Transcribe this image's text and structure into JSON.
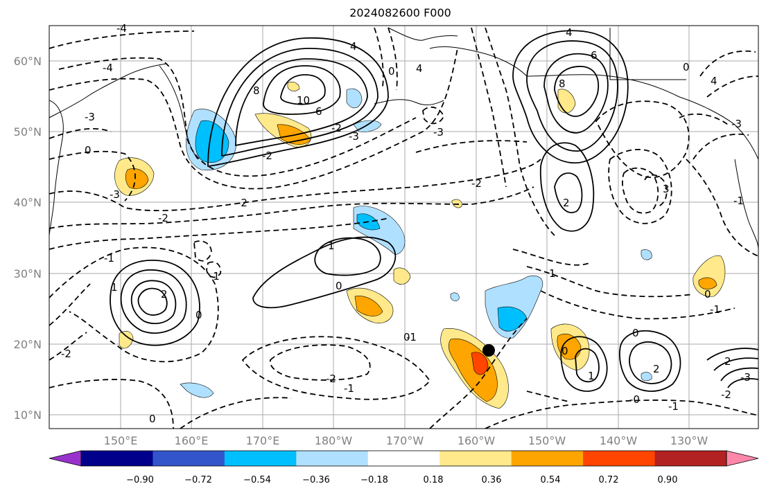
{
  "title": "2024082600 F000",
  "lat_labels": [
    "60°N",
    "50°N",
    "40°N",
    "30°N",
    "20°N",
    "10°N"
  ],
  "lon_labels": [
    "150°E",
    "160°E",
    "170°E",
    "180°W",
    "170°W",
    "160°W",
    "150°W",
    "140°W",
    "130°W"
  ],
  "colorbar": {
    "ticks": [
      "−0.90",
      "−0.72",
      "−0.54",
      "−0.36",
      "−0.18",
      "0.18",
      "0.36",
      "0.54",
      "0.72",
      "0.90"
    ],
    "colors": [
      "#9932cc",
      "#00008b",
      "#3355cc",
      "#00bfff",
      "#b0e0ff",
      "#ffffff",
      "#ffe98a",
      "#ffa500",
      "#ff4500",
      "#b22222",
      "#ff88aa"
    ]
  },
  "contour_labels": [
    "-4",
    "-4",
    "4",
    "0",
    "8",
    "10",
    "6",
    "4",
    "-3",
    "-2",
    "-3",
    "-2",
    "4",
    "6",
    "8",
    "0",
    "4",
    "-3",
    "-3",
    "0",
    "-3",
    "-2",
    "-2",
    "-2",
    "-1",
    "1",
    "0",
    "-1",
    "1",
    "2",
    "0",
    "-1",
    "0",
    "-2",
    "-1",
    "0",
    "1",
    "0",
    "1",
    "2",
    "0",
    "-0",
    "-1",
    "-1",
    "-2",
    "2",
    "-3",
    "-1",
    "-2",
    "0",
    "3",
    "2"
  ],
  "marker": "storm-center"
}
